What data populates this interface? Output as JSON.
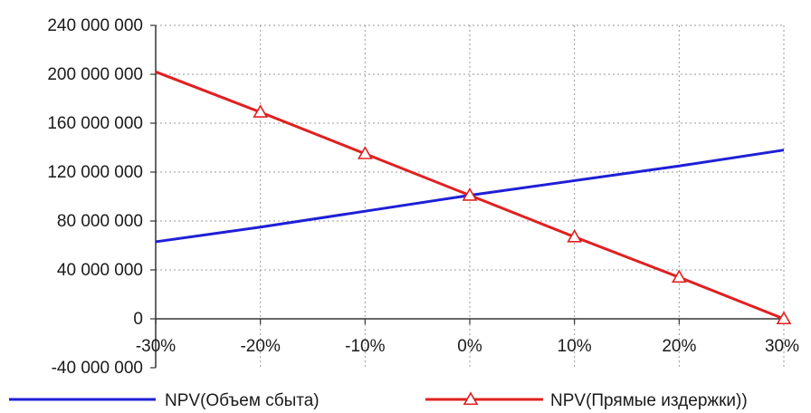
{
  "chart_data": {
    "type": "line",
    "title": "",
    "xlabel": "",
    "ylabel": "",
    "x": [
      "-30%",
      "-20%",
      "-10%",
      "0%",
      "10%",
      "20%",
      "30%"
    ],
    "x_values": [
      -30,
      -20,
      -10,
      0,
      10,
      20,
      30
    ],
    "xlim": [
      -30,
      30
    ],
    "ylim": [
      -40000000,
      240000000
    ],
    "y_ticks": [
      240000000,
      200000000,
      160000000,
      120000000,
      80000000,
      40000000,
      0,
      -40000000
    ],
    "y_tick_labels": [
      "240 000 000",
      "200 000 000",
      "160 000 000",
      "120 000 000",
      "80 000 000",
      "40 000 000",
      "0",
      "-40 000 000"
    ],
    "grid": true,
    "legend_position": "bottom",
    "series": [
      {
        "name": "NPV(Объем сбыта)",
        "color": "#1f1fd6",
        "marker": "none",
        "values": [
          63000000,
          75000000,
          88000000,
          101000000,
          113000000,
          125000000,
          138000000
        ]
      },
      {
        "name": "NPV(Прямые издержки)",
        "color": "#e02020",
        "marker": "triangle",
        "values": [
          202000000,
          169000000,
          135000000,
          101000000,
          67000000,
          34000000,
          0
        ]
      }
    ]
  }
}
